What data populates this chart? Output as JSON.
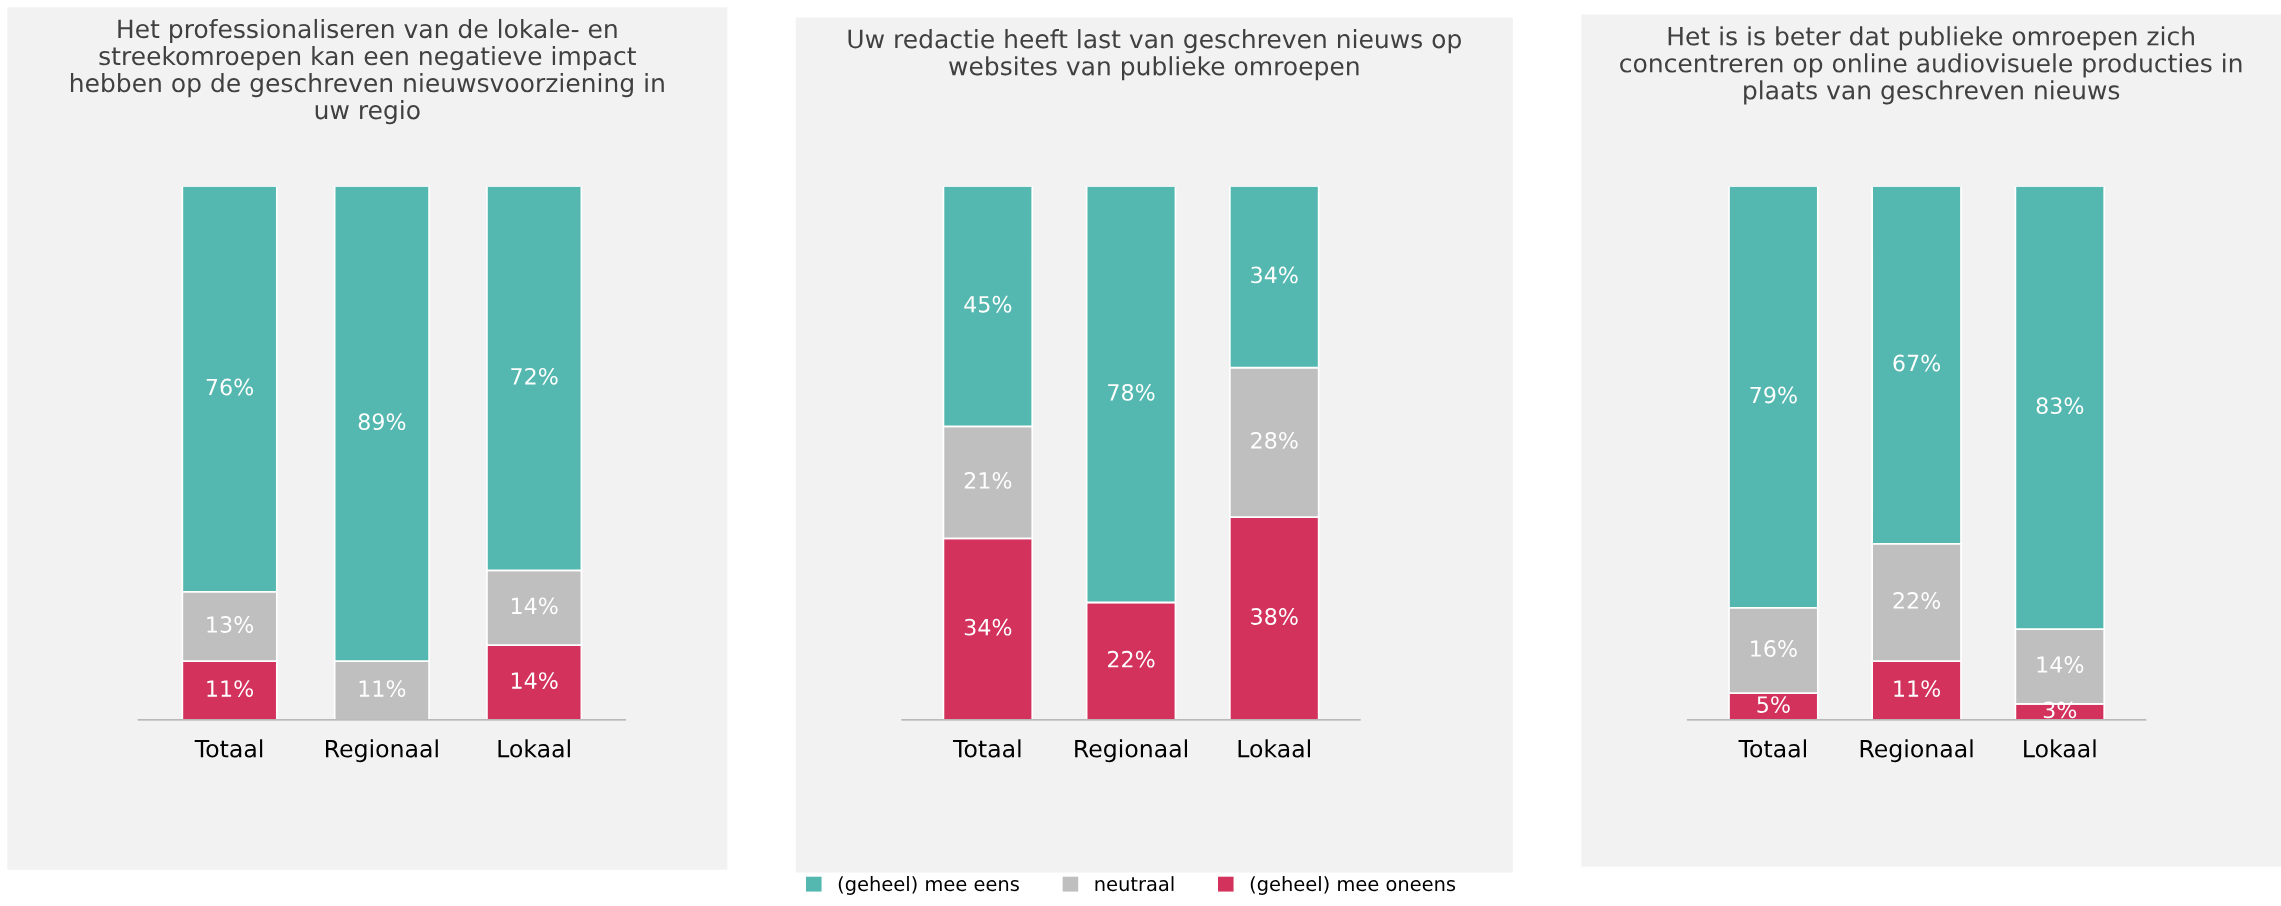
{
  "chart_data": [
    {
      "type": "bar",
      "stacked": true,
      "data_labels": false,
      "tick_labels": "x",
      "legend": false,
      "title": "Het professionaliseren van de lokale- en\nstreekomroepen kan een negatieve impact\nhebben op de geschreven nieuwsvoorziening in\nuw regio",
      "categories": [
        "Totaal",
        "Regionaal",
        "Lokaal"
      ],
      "series": [
        {
          "color": "#d3325d",
          "values": [
            11,
            0,
            14
          ],
          "value_labels": [
            "11%",
            null,
            "14%"
          ]
        },
        {
          "color": "#bfbfbf",
          "values": [
            13,
            11,
            14
          ],
          "value_labels": [
            "13%",
            "11%",
            "14%"
          ]
        },
        {
          "color": "#55b8b0",
          "values": [
            76,
            89,
            72
          ],
          "value_labels": [
            "76%",
            "89%",
            "72%"
          ]
        }
      ]
    },
    {
      "type": "bar",
      "stacked": true,
      "data_labels": false,
      "tick_labels": "x",
      "legend": "bottom",
      "title": "Uw redactie heeft last van geschreven nieuws op\nwebsites van publieke omroepen",
      "categories": [
        "Totaal",
        "Regionaal",
        "Lokaal"
      ],
      "series": [
        {
          "name": "(geheel) mee oneens",
          "color": "#d3325d",
          "values": [
            34,
            22,
            38
          ],
          "value_labels": [
            "34%",
            "22%",
            "38%"
          ]
        },
        {
          "name": "neutraal",
          "color": "#bfbfbf",
          "values": [
            21,
            0,
            28
          ],
          "value_labels": [
            "21%",
            null,
            "28%"
          ]
        },
        {
          "name": "(geheel) mee eens",
          "color": "#55b8b0",
          "values": [
            45,
            78,
            34
          ],
          "value_labels": [
            "45%",
            "78%",
            "34%"
          ]
        }
      ]
    },
    {
      "type": "bar",
      "stacked": true,
      "data_labels": false,
      "tick_labels": "x",
      "legend": false,
      "title": "Het is is beter dat publieke omroepen zich\nconcentreren op online audiovisuele producties in\nplaats van geschreven nieuws",
      "categories": [
        "Totaal",
        "Regionaal",
        "Lokaal"
      ],
      "series": [
        {
          "color": "#d3325d",
          "values": [
            5,
            11,
            3
          ],
          "value_labels": [
            "5%",
            "11%",
            "3%"
          ]
        },
        {
          "color": "#bfbfbf",
          "values": [
            16,
            22,
            14
          ],
          "value_labels": [
            "16%",
            "22%",
            "14%"
          ]
        },
        {
          "color": "#55b8b0",
          "values": [
            79,
            67,
            83
          ],
          "value_labels": [
            "79%",
            "67%",
            "83%"
          ]
        }
      ]
    }
  ]
}
